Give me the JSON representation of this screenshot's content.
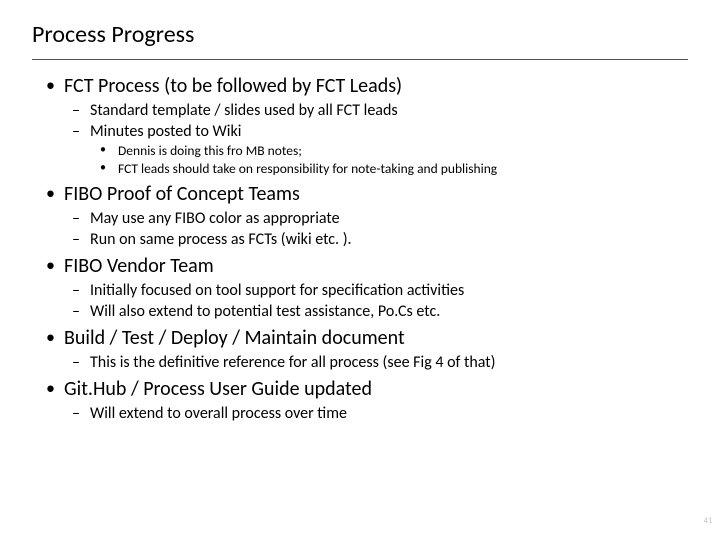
{
  "title": "Process Progress",
  "page_number": "41",
  "colors": {
    "background": "#ffffff",
    "text": "#000000",
    "rule": "#555555",
    "pagenum": "#bfbfbf"
  },
  "typography": {
    "title_fontsize": 24,
    "l1_fontsize": 20,
    "l2_fontsize": 16,
    "l3_fontsize": 13.5,
    "pagenum_fontsize": 8,
    "font_family": "Calibri"
  },
  "bullets": {
    "b1": {
      "text": "FCT Process (to be followed by FCT Leads)",
      "sub": {
        "s1": {
          "text": "Standard template / slides used by all FCT leads"
        },
        "s2": {
          "text": "Minutes posted to Wiki",
          "sub": {
            "t1": {
              "text": "Dennis is doing this fro MB notes;"
            },
            "t2": {
              "text": "FCT leads should take on responsibility for note-taking and publishing"
            }
          }
        }
      }
    },
    "b2": {
      "text": "FIBO Proof of Concept Teams",
      "sub": {
        "s1": {
          "text": "May use any FIBO color as appropriate"
        },
        "s2": {
          "text": "Run on same process as FCTs (wiki etc. )."
        }
      }
    },
    "b3": {
      "text": "FIBO Vendor Team",
      "sub": {
        "s1": {
          "text": "Initially focused on tool support for specification activities"
        },
        "s2": {
          "text": "Will also extend to potential test assistance, Po.Cs etc."
        }
      }
    },
    "b4": {
      "text": "Build / Test / Deploy / Maintain document",
      "sub": {
        "s1": {
          "text": "This is the definitive reference for all process (see Fig 4 of that)"
        }
      }
    },
    "b5": {
      "text": "Git.Hub / Process User Guide updated",
      "sub": {
        "s1": {
          "text": "Will extend to overall process over time"
        }
      }
    }
  }
}
